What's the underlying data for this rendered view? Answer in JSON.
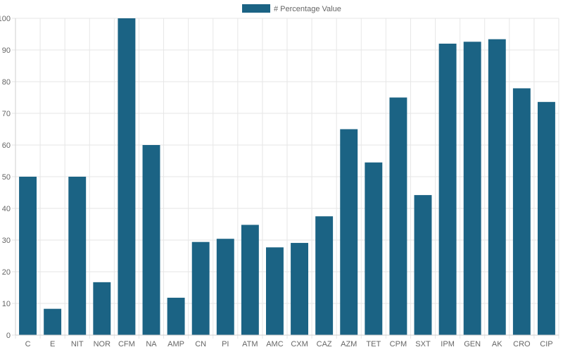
{
  "chart_data": {
    "type": "bar",
    "title": "",
    "xlabel": "",
    "ylabel": "",
    "ylim": [
      0,
      100
    ],
    "yticks": [
      0,
      10,
      20,
      30,
      40,
      50,
      60,
      70,
      80,
      90,
      100
    ],
    "grid": true,
    "legend_position": "top-center",
    "bar_color": "#1b6384",
    "categories": [
      "C",
      "E",
      "NIT",
      "NOR",
      "CFM",
      "NA",
      "AMP",
      "CN",
      "PI",
      "ATM",
      "AMC",
      "CXM",
      "CAZ",
      "AZM",
      "TET",
      "CPM",
      "SXT",
      "IPM",
      "GEN",
      "AK",
      "CRO",
      "CIP"
    ],
    "series": [
      {
        "name": "# Percentage Value",
        "values": [
          50,
          8.3,
          50,
          16.7,
          100,
          60,
          11.8,
          29.4,
          30.4,
          34.8,
          27.7,
          29.1,
          37.5,
          65,
          54.5,
          75,
          44.2,
          92,
          92.6,
          93.4,
          77.9,
          73.6
        ]
      }
    ]
  }
}
